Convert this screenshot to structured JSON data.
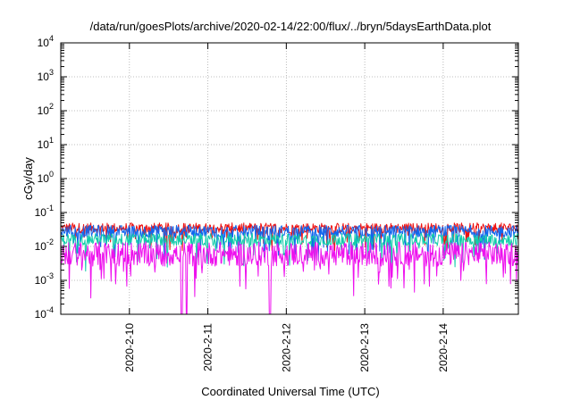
{
  "chart_data": {
    "type": "line",
    "title": "/data/run/goesPlots/archive/2020-02-14/22:00/flux/../bryn/5daysEarthData.plot",
    "xlabel": "Coordinated Universal Time (UTC)",
    "ylabel": "cGy/day",
    "yscale": "log",
    "ylim": [
      0.0001,
      10000
    ],
    "xlim": [
      "2020-02-09 03:00",
      "2020-02-14 23:00"
    ],
    "grid": true,
    "x_ticks": [
      "2020-2-10",
      "2020-2-11",
      "2020-2-12",
      "2020-2-13",
      "2020-2-14"
    ],
    "y_ticks": [
      {
        "base": "10",
        "exp": "-4"
      },
      {
        "base": "10",
        "exp": "-3"
      },
      {
        "base": "10",
        "exp": "-2"
      },
      {
        "base": "10",
        "exp": "-1"
      },
      {
        "base": "10",
        "exp": "0"
      },
      {
        "base": "10",
        "exp": "1"
      },
      {
        "base": "10",
        "exp": "2"
      },
      {
        "base": "10",
        "exp": "3"
      },
      {
        "base": "10",
        "exp": "4"
      }
    ],
    "series": [
      {
        "color": "#ee1111",
        "typical": 0.035,
        "spread": 0.25,
        "dips": [],
        "dip_depth": 0.6
      },
      {
        "color": "#1166ee",
        "typical": 0.028,
        "spread": 0.3,
        "dips": [],
        "dip_depth": 0.8
      },
      {
        "color": "#11ccaa",
        "typical": 0.016,
        "spread": 0.3,
        "dips": [],
        "dip_depth": 0.9
      },
      {
        "color": "#ee11ee",
        "typical": 0.006,
        "spread": 0.6,
        "dips": [
          "2020-02-10 16:00",
          "2020-02-10 17:30",
          "2020-02-11 19:00"
        ],
        "dip_depth": 1.0
      }
    ]
  }
}
